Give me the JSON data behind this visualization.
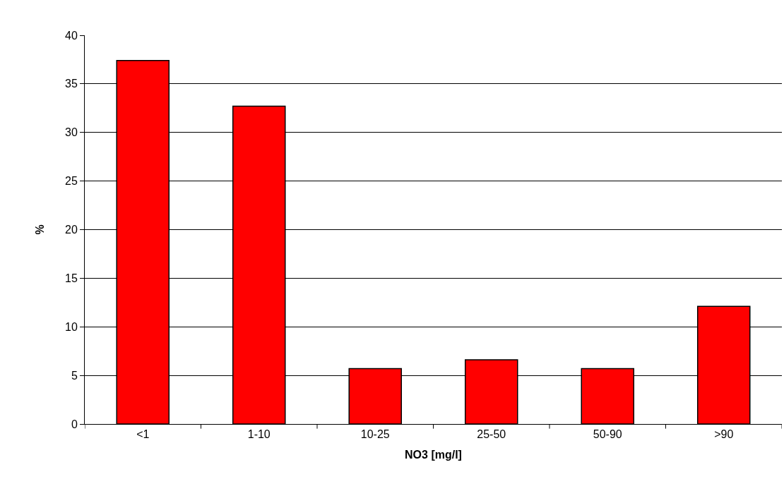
{
  "chart_data": {
    "type": "bar",
    "xlabel": "NO3 [mg/l]",
    "ylabel": "%",
    "categories": [
      "<1",
      "1-10",
      "10-25",
      "25-50",
      "50-90",
      ">90"
    ],
    "values": [
      37.4,
      32.7,
      5.7,
      6.6,
      5.7,
      12.1
    ],
    "color": "#ff0000",
    "ylim": [
      0,
      40
    ],
    "yticks": [
      0,
      5,
      10,
      15,
      20,
      25,
      30,
      35,
      40
    ],
    "grid": "y"
  }
}
